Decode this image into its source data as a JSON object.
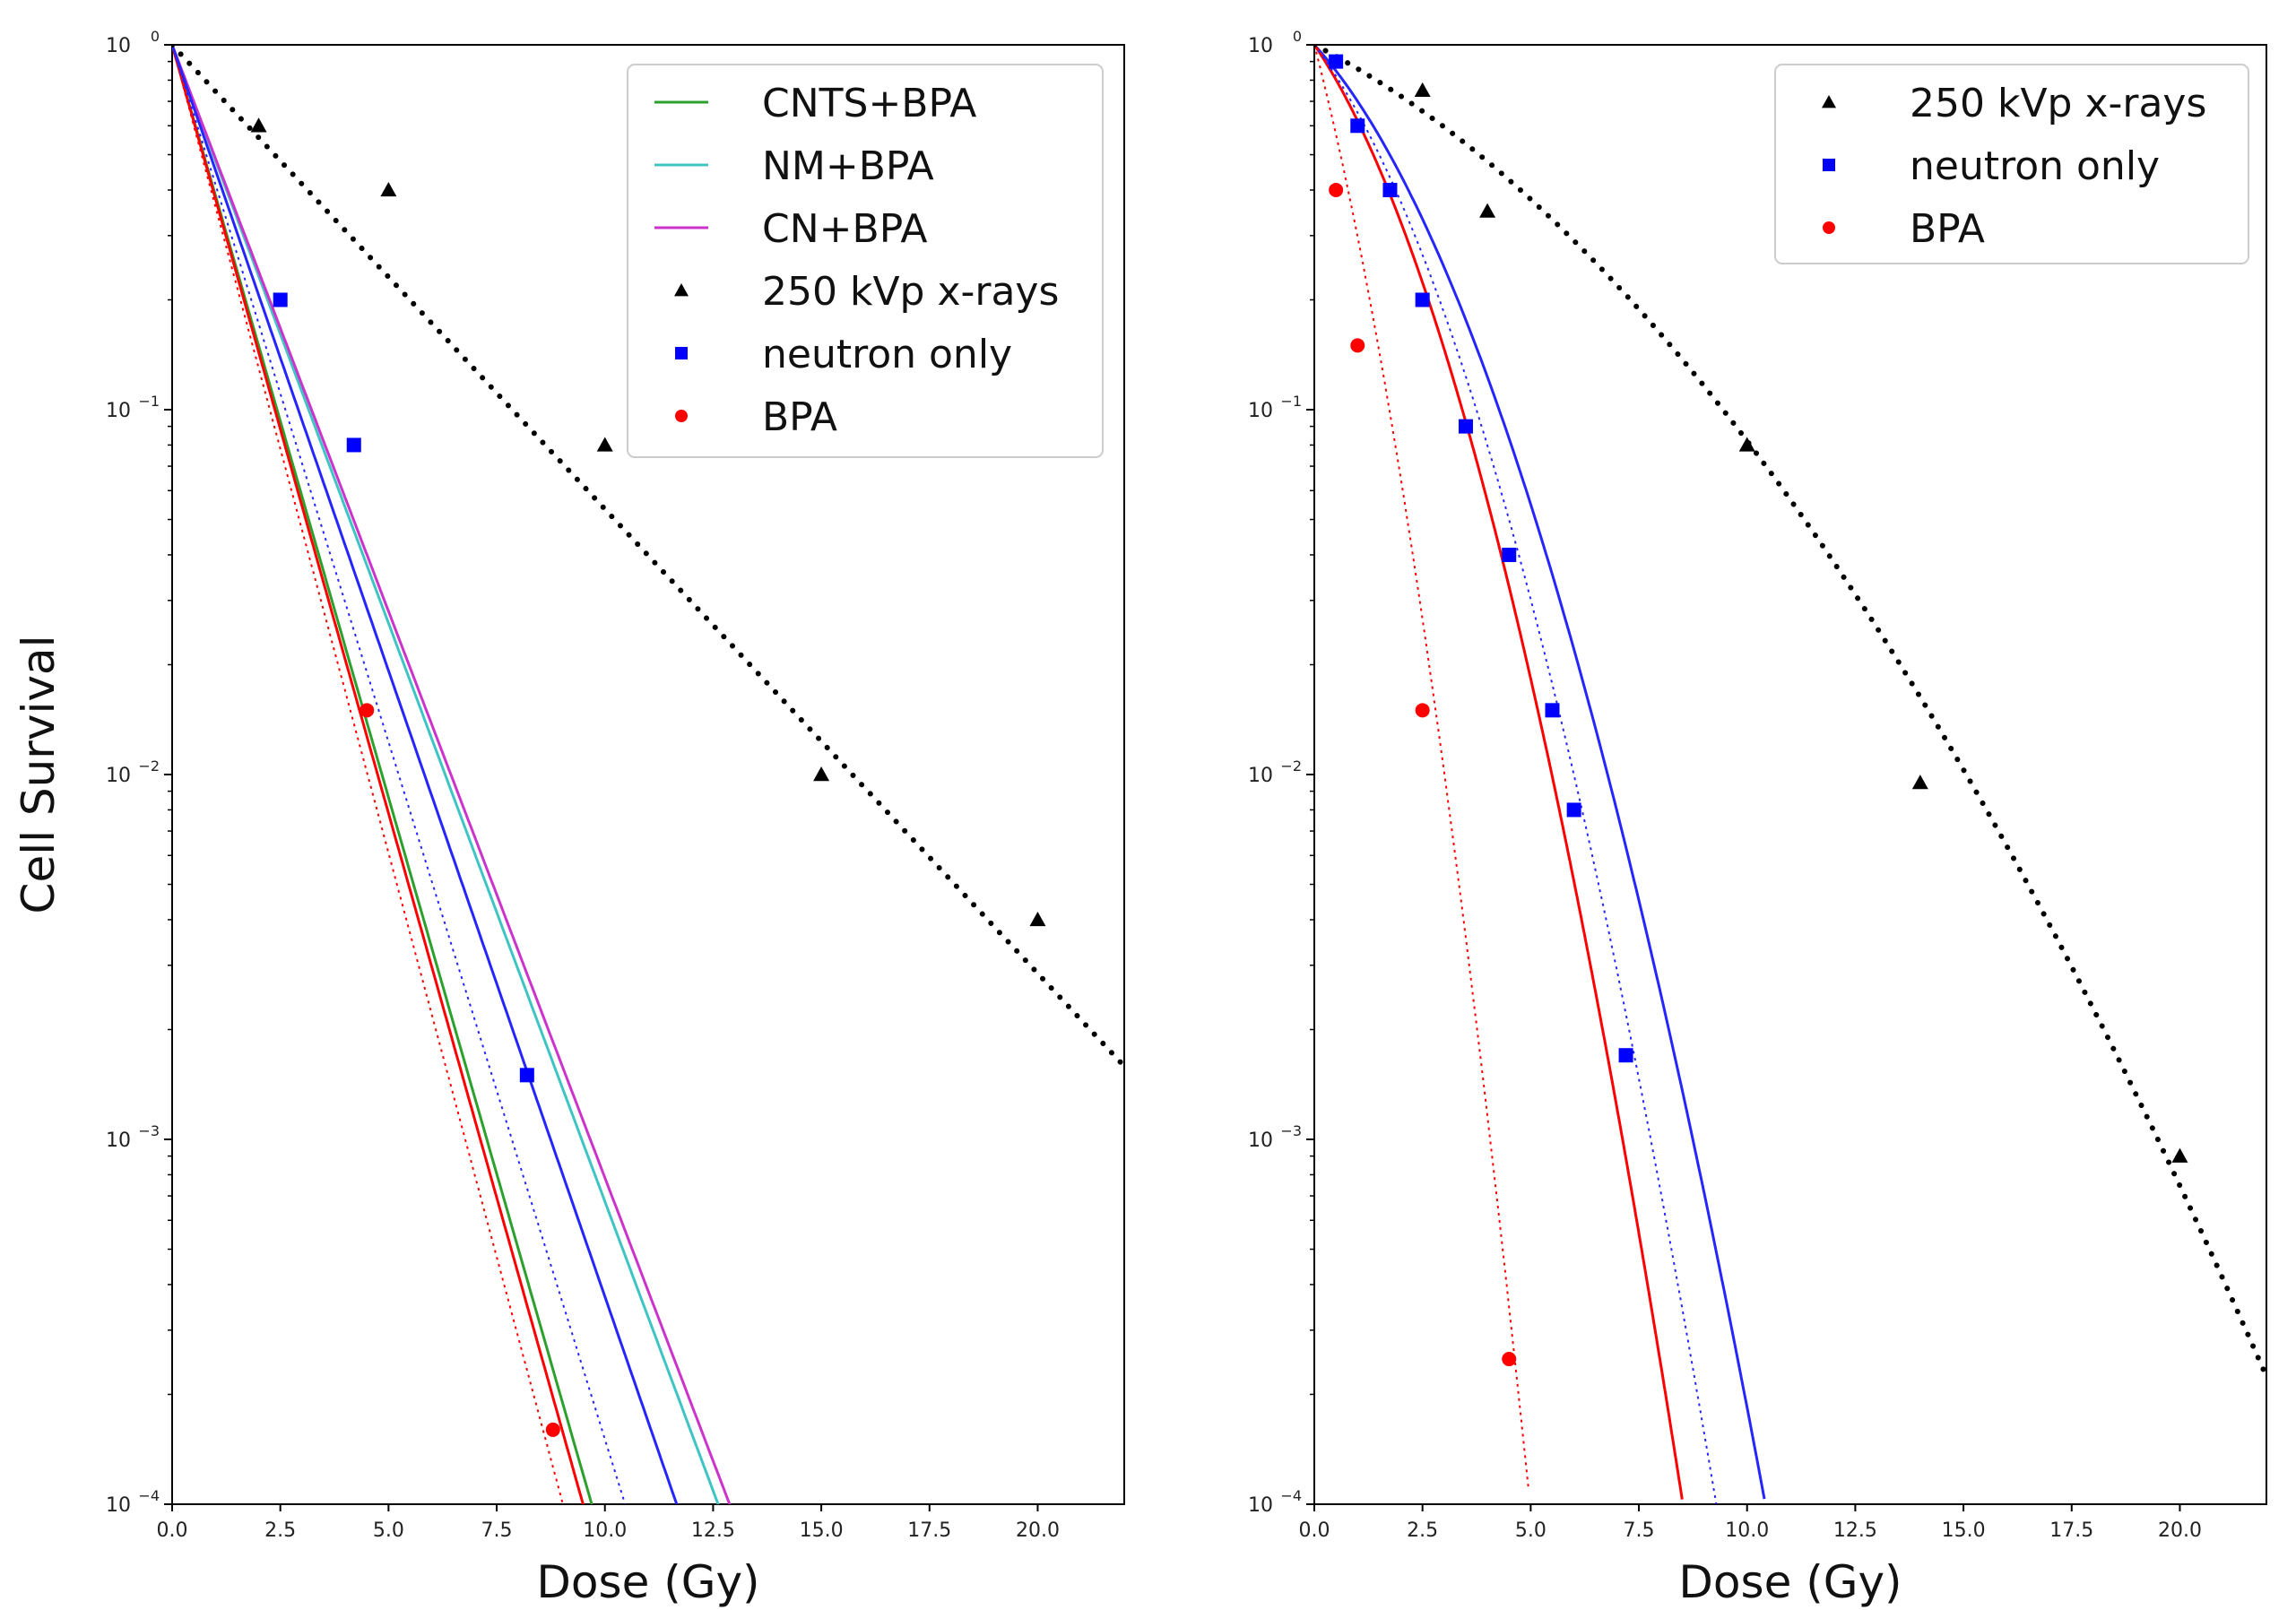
{
  "chart_data": [
    {
      "type": "line",
      "panel": "left",
      "xlabel": "Dose (Gy)",
      "ylabel": "Cell Survival",
      "xlim": [
        0,
        22
      ],
      "ylim": [
        0.0001,
        1
      ],
      "yscale": "log",
      "x_ticks": [
        "0.0",
        "2.5",
        "5.0",
        "7.5",
        "10.0",
        "12.5",
        "15.0",
        "17.5",
        "20.0"
      ],
      "y_ticks": [
        {
          "value": 1,
          "base": "10",
          "exp": "0"
        },
        {
          "value": 0.1,
          "base": "10",
          "exp": "−1"
        },
        {
          "value": 0.01,
          "base": "10",
          "exp": "−2"
        },
        {
          "value": 0.001,
          "base": "10",
          "exp": "−3"
        },
        {
          "value": 0.0001,
          "base": "10",
          "exp": "−4"
        }
      ],
      "legend_position": "top-right",
      "curves": [
        {
          "name": "CNTS+BPA",
          "color": "#2ca02c",
          "style": "solid",
          "in_legend": true,
          "alpha": 0.95,
          "beta": 0.0,
          "xmax": 9.9
        },
        {
          "name": "NM+BPA",
          "color": "#3fc4c4",
          "style": "solid",
          "in_legend": true,
          "alpha": 0.73,
          "beta": 0.0,
          "xmax": 12.8
        },
        {
          "name": "CN+BPA",
          "color": "#cc33cc",
          "style": "solid",
          "in_legend": true,
          "alpha": 0.715,
          "beta": 0.0,
          "xmax": 12.9
        },
        {
          "name": "BPA fit",
          "color": "#ff0000",
          "style": "solid",
          "in_legend": false,
          "alpha": 0.97,
          "beta": 0.0,
          "xmax": 9.6
        },
        {
          "name": "neutron fit",
          "color": "#2525ff",
          "style": "solid",
          "in_legend": false,
          "alpha": 0.79,
          "beta": 0.0,
          "xmax": 11.7
        },
        {
          "name": "BPA dotted",
          "color": "#ff0000",
          "style": "dotted",
          "in_legend": false,
          "alpha": 1.02,
          "beta": 0.0,
          "xmax": 9.2
        },
        {
          "name": "neutron dotted",
          "color": "#2525ff",
          "style": "dotted",
          "in_legend": false,
          "alpha": 0.88,
          "beta": 0.0,
          "xmax": 10.6
        },
        {
          "name": "x-ray fit",
          "color": "#000000",
          "style": "bigdot",
          "in_legend": false,
          "alpha": 0.293,
          "beta": 0.0,
          "xmax": 22
        }
      ],
      "points": [
        {
          "name": "250 kVp x-rays",
          "marker": "triangle",
          "color": "#000000",
          "x": [
            2,
            5,
            10,
            15,
            20
          ],
          "y": [
            0.6,
            0.4,
            0.08,
            0.01,
            0.004
          ]
        },
        {
          "name": "neutron only",
          "marker": "square",
          "color": "#0000ff",
          "x": [
            2.5,
            4.2,
            8.2
          ],
          "y": [
            0.2,
            0.08,
            0.0015
          ]
        },
        {
          "name": "BPA",
          "marker": "circle",
          "color": "#ff0000",
          "x": [
            4.5,
            8.8
          ],
          "y": [
            0.015,
            0.00016
          ]
        }
      ],
      "legend": [
        {
          "label": "CNTS+BPA",
          "kind": "line",
          "color": "#2ca02c"
        },
        {
          "label": "NM+BPA",
          "kind": "line",
          "color": "#3fc4c4"
        },
        {
          "label": "CN+BPA",
          "kind": "line",
          "color": "#cc33cc"
        },
        {
          "label": "250 kVp x-rays",
          "kind": "triangle",
          "color": "#000000"
        },
        {
          "label": "neutron only",
          "kind": "square",
          "color": "#0000ff"
        },
        {
          "label": "BPA",
          "kind": "circle",
          "color": "#ff0000"
        }
      ]
    },
    {
      "type": "line",
      "panel": "right",
      "xlabel": "Dose (Gy)",
      "ylabel": "",
      "xlim": [
        0,
        22
      ],
      "ylim": [
        0.0001,
        1
      ],
      "yscale": "log",
      "x_ticks": [
        "0.0",
        "2.5",
        "5.0",
        "7.5",
        "10.0",
        "12.5",
        "15.0",
        "17.5",
        "20.0"
      ],
      "y_ticks": [
        {
          "value": 1,
          "base": "10",
          "exp": "0"
        },
        {
          "value": 0.1,
          "base": "10",
          "exp": "−1"
        },
        {
          "value": 0.01,
          "base": "10",
          "exp": "−2"
        },
        {
          "value": 0.001,
          "base": "10",
          "exp": "−3"
        },
        {
          "value": 0.0001,
          "base": "10",
          "exp": "−4"
        }
      ],
      "legend_position": "top-right",
      "curves": [
        {
          "name": "neutron fit",
          "color": "#2525ff",
          "style": "solid",
          "in_legend": false,
          "alpha": 0.3,
          "beta": 0.056,
          "xmax": 10.4
        },
        {
          "name": "BPA fit",
          "color": "#ff0000",
          "style": "solid",
          "in_legend": false,
          "alpha": 0.4,
          "beta": 0.08,
          "xmax": 8.5
        },
        {
          "name": "neutron dotted",
          "color": "#2525ff",
          "style": "dotted",
          "in_legend": false,
          "alpha": 0.36,
          "beta": 0.068,
          "xmax": 9.4
        },
        {
          "name": "BPA dotted",
          "color": "#ff0000",
          "style": "dotted",
          "in_legend": false,
          "alpha": 1.05,
          "beta": 0.16,
          "xmax": 4.95
        },
        {
          "name": "x-ray fit",
          "color": "#000000",
          "style": "bigdot",
          "in_legend": false,
          "alpha": 0.14,
          "beta": 0.011,
          "xmax": 22
        }
      ],
      "points": [
        {
          "name": "250 kVp x-rays",
          "marker": "triangle",
          "color": "#000000",
          "x": [
            2.5,
            4,
            10,
            14,
            20
          ],
          "y": [
            0.75,
            0.35,
            0.08,
            0.0095,
            0.0009
          ]
        },
        {
          "name": "neutron only",
          "marker": "square",
          "color": "#0000ff",
          "x": [
            0.5,
            1,
            1.75,
            2.5,
            3.5,
            4.5,
            5.5,
            6,
            7.2
          ],
          "y": [
            0.9,
            0.6,
            0.4,
            0.2,
            0.09,
            0.04,
            0.015,
            0.008,
            0.0017
          ]
        },
        {
          "name": "BPA",
          "marker": "circle",
          "color": "#ff0000",
          "x": [
            0.5,
            1,
            2.5,
            4.5
          ],
          "y": [
            0.4,
            0.15,
            0.015,
            0.00025
          ]
        }
      ],
      "legend": [
        {
          "label": "250 kVp x-rays",
          "kind": "triangle",
          "color": "#000000"
        },
        {
          "label": "neutron only",
          "kind": "square",
          "color": "#0000ff"
        },
        {
          "label": "BPA",
          "kind": "circle",
          "color": "#ff0000"
        }
      ]
    }
  ]
}
